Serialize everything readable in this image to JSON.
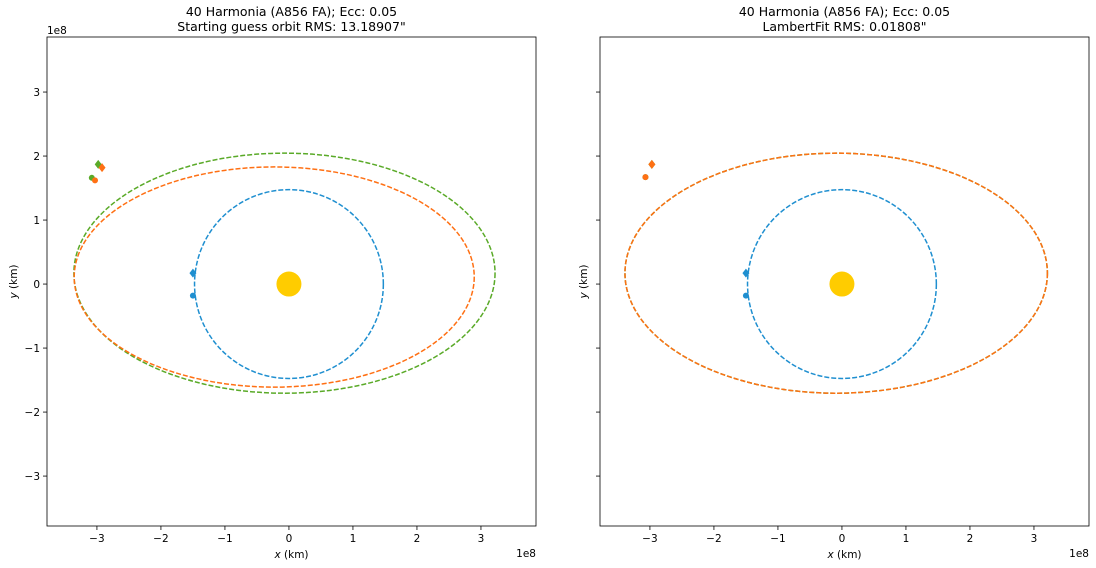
{
  "chart_data": [
    {
      "type": "scatter",
      "title_lines": [
        "40 Harmonia (A856 FA); Ecc: 0.05",
        "Starting guess orbit RMS: 13.18907\""
      ],
      "xlabel_var": "x",
      "xlabel_unit": " (km)",
      "ylabel_var": "y",
      "ylabel_unit": " (km)",
      "x_offset_label": "1e8",
      "y_offset_label": "1e8",
      "xlim": [
        -3.78,
        3.86
      ],
      "ylim": [
        -3.78,
        3.86
      ],
      "x_ticks": [
        -3,
        -2,
        -1,
        0,
        1,
        2,
        3
      ],
      "y_ticks": [
        -3,
        -2,
        -1,
        0,
        1,
        2,
        3
      ],
      "x_tick_labels": [
        "−3",
        "−2",
        "−1",
        "0",
        "1",
        "2",
        "3"
      ],
      "y_tick_labels": [
        "−3",
        "−2",
        "−1",
        "0",
        "1",
        "2",
        "3"
      ],
      "show_y_tick_labels": true,
      "sun": {
        "x": 0,
        "y": 0,
        "color": "#ffcc00"
      },
      "orbits": [
        {
          "color": "#1f8fd0",
          "cx": 0,
          "cy": 0,
          "rx": 1.475,
          "ry": 1.475
        },
        {
          "color": "#5aaa28",
          "cx": -0.07,
          "cy": 0.17,
          "rx": 3.29,
          "ry": 1.875
        },
        {
          "color": "#ff7014",
          "cx": -0.23,
          "cy": 0.11,
          "rx": 3.125,
          "ry": 1.72
        }
      ],
      "markers": [
        {
          "series": "earth",
          "color": "#1f8fd0",
          "shape": "diamond",
          "x": -1.5,
          "y": 0.17
        },
        {
          "series": "earth",
          "color": "#1f8fd0",
          "shape": "circle",
          "x": -1.5,
          "y": -0.18
        },
        {
          "series": "green",
          "color": "#5aaa28",
          "shape": "diamond",
          "x": -2.98,
          "y": 1.87
        },
        {
          "series": "green",
          "color": "#5aaa28",
          "shape": "circle",
          "x": -3.08,
          "y": 1.66
        },
        {
          "series": "orange",
          "color": "#ff7014",
          "shape": "diamond",
          "x": -2.92,
          "y": 1.82
        },
        {
          "series": "orange",
          "color": "#ff7014",
          "shape": "circle",
          "x": -3.03,
          "y": 1.62
        }
      ]
    },
    {
      "type": "scatter",
      "title_lines": [
        "40 Harmonia (A856 FA); Ecc: 0.05",
        "LambertFit RMS: 0.01808\""
      ],
      "xlabel_var": "x",
      "xlabel_unit": " (km)",
      "ylabel_var": "y",
      "ylabel_unit": " (km)",
      "x_offset_label": "1e8",
      "y_offset_label": "",
      "xlim": [
        -3.78,
        3.86
      ],
      "ylim": [
        -3.78,
        3.86
      ],
      "x_ticks": [
        -3,
        -2,
        -1,
        0,
        1,
        2,
        3
      ],
      "y_ticks": [
        -3,
        -2,
        -1,
        0,
        1,
        2,
        3
      ],
      "x_tick_labels": [
        "−3",
        "−2",
        "−1",
        "0",
        "1",
        "2",
        "3"
      ],
      "y_tick_labels": [],
      "show_y_tick_labels": false,
      "sun": {
        "x": 0,
        "y": 0,
        "color": "#ffcc00"
      },
      "orbits": [
        {
          "color": "#1f8fd0",
          "cx": 0,
          "cy": 0,
          "rx": 1.475,
          "ry": 1.475
        },
        {
          "color": "#5aaa28",
          "cx": -0.09,
          "cy": 0.17,
          "rx": 3.3,
          "ry": 1.875
        },
        {
          "color": "#ff7014",
          "cx": -0.09,
          "cy": 0.17,
          "rx": 3.3,
          "ry": 1.875
        }
      ],
      "markers": [
        {
          "series": "earth",
          "color": "#1f8fd0",
          "shape": "diamond",
          "x": -1.5,
          "y": 0.17
        },
        {
          "series": "earth",
          "color": "#1f8fd0",
          "shape": "circle",
          "x": -1.5,
          "y": -0.18
        },
        {
          "series": "green",
          "color": "#5aaa28",
          "shape": "diamond",
          "x": -2.97,
          "y": 1.87
        },
        {
          "series": "green",
          "color": "#5aaa28",
          "shape": "circle",
          "x": -3.07,
          "y": 1.67
        },
        {
          "series": "orange",
          "color": "#ff7014",
          "shape": "diamond",
          "x": -2.97,
          "y": 1.87
        },
        {
          "series": "orange",
          "color": "#ff7014",
          "shape": "circle",
          "x": -3.07,
          "y": 1.67
        }
      ]
    }
  ]
}
